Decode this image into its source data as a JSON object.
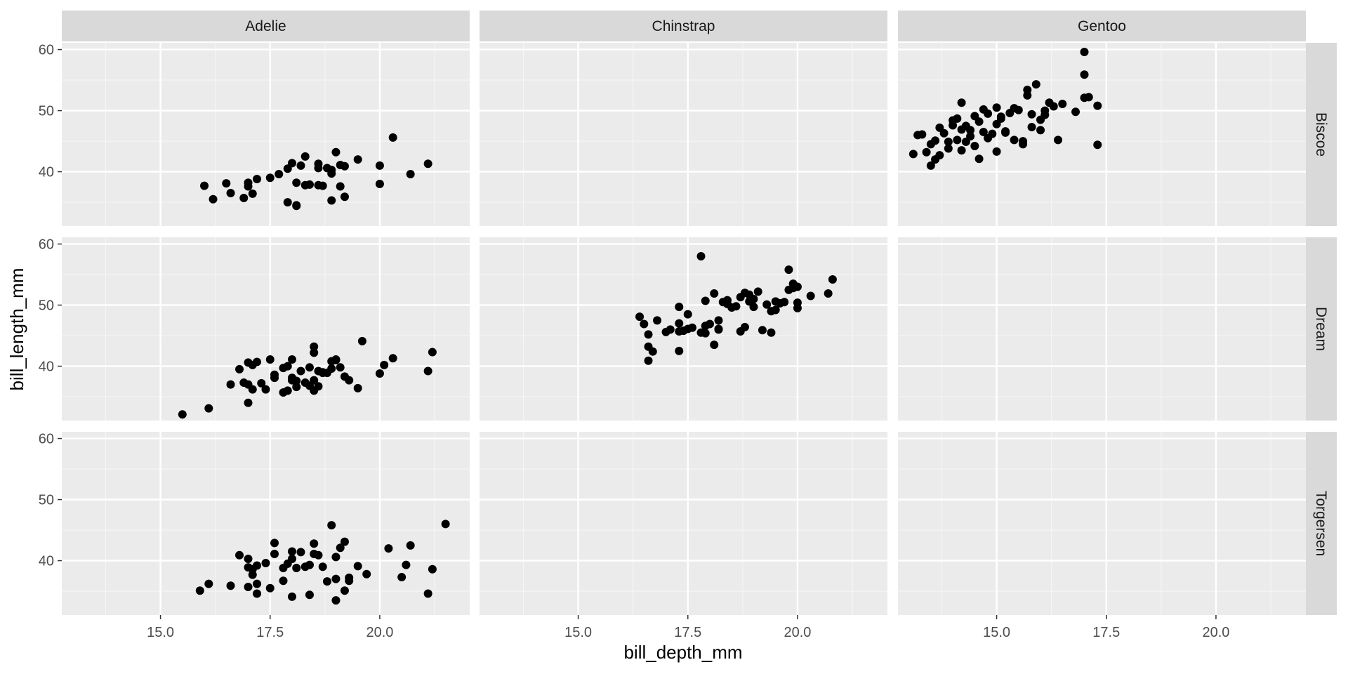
{
  "chart_data": {
    "type": "scatter",
    "title": "",
    "xlabel": "bill_depth_mm",
    "ylabel": "bill_length_mm",
    "xlim": [
      12.75,
      22.05
    ],
    "ylim": [
      31.1,
      61.1
    ],
    "x_ticks": [
      "15.0",
      "17.5",
      "20.0"
    ],
    "y_ticks": [
      "40",
      "50",
      "60"
    ],
    "facet_columns": [
      "Adelie",
      "Chinstrap",
      "Gentoo"
    ],
    "facet_rows": [
      "Biscoe",
      "Dream",
      "Torgersen"
    ],
    "grid": true,
    "legend": "none",
    "colors": {
      "panel_bg": "#ebebeb",
      "strip_bg": "#d9d9d9",
      "grid_major": "#ffffff",
      "grid_minor": "#f5f5f5",
      "point": "#000000",
      "tick_text": "#4d4d4d",
      "strip_text": "#1a1a1a"
    },
    "panels": [
      {
        "species": "Adelie",
        "island": "Biscoe",
        "x": [
          16.0,
          16.2,
          16.5,
          16.6,
          16.9,
          17.0,
          17.0,
          17.1,
          17.2,
          17.5,
          17.7,
          17.9,
          18.0,
          18.1,
          18.1,
          18.2,
          18.3,
          18.3,
          18.4,
          18.6,
          18.6,
          18.7,
          18.8,
          18.9,
          18.9,
          19.0,
          19.1,
          19.1,
          19.2,
          19.5,
          20.0,
          20.0,
          20.3,
          20.7,
          21.1,
          17.9,
          18.1,
          18.9,
          19.2,
          18.6
        ],
        "y": [
          37.7,
          35.5,
          38.1,
          36.5,
          35.7,
          37.6,
          38.2,
          36.4,
          38.8,
          39.0,
          39.6,
          40.5,
          41.4,
          38.2,
          34.5,
          41.0,
          37.8,
          42.5,
          37.9,
          37.8,
          41.3,
          37.7,
          40.6,
          40.3,
          35.3,
          43.2,
          37.6,
          41.1,
          35.9,
          42.0,
          41.0,
          38.0,
          45.6,
          39.6,
          41.3,
          35.0,
          34.4,
          39.7,
          40.9,
          40.6
        ]
      },
      {
        "species": "Chinstrap",
        "island": "Biscoe",
        "x": [],
        "y": []
      },
      {
        "species": "Gentoo",
        "island": "Biscoe",
        "x": [
          13.1,
          13.3,
          13.4,
          13.5,
          13.6,
          13.7,
          13.7,
          13.8,
          13.9,
          14.0,
          14.1,
          14.2,
          14.2,
          14.3,
          14.4,
          14.5,
          14.5,
          14.6,
          14.7,
          14.8,
          14.9,
          15.0,
          15.0,
          15.1,
          15.2,
          15.3,
          15.4,
          15.5,
          15.6,
          15.7,
          15.8,
          15.9,
          16.0,
          16.1,
          16.2,
          16.3,
          16.4,
          16.8,
          17.0,
          17.0,
          17.0,
          17.1,
          17.3,
          17.3,
          15.6,
          15.7,
          15.8,
          16.1,
          14.8,
          14.1,
          13.6,
          13.2,
          14.0,
          15.0,
          14.4,
          14.6,
          15.1,
          14.2,
          15.4,
          13.9,
          14.3,
          16.0,
          16.5,
          15.2,
          14.7,
          13.5
        ],
        "y": [
          42.9,
          46.1,
          43.2,
          44.5,
          45.1,
          47.2,
          42.7,
          46.3,
          44.9,
          48.4,
          45.2,
          51.3,
          43.5,
          47.5,
          46.8,
          49.1,
          44.2,
          48.2,
          46.5,
          49.5,
          46.2,
          50.5,
          47.8,
          48.7,
          46.4,
          49.6,
          45.2,
          50.1,
          44.5,
          52.5,
          47.3,
          54.3,
          46.8,
          49.3,
          51.3,
          50.7,
          45.2,
          49.8,
          59.6,
          55.9,
          52.1,
          52.2,
          50.8,
          44.4,
          45.0,
          53.4,
          49.4,
          50.0,
          45.5,
          48.7,
          42.0,
          46.0,
          47.6,
          43.3,
          45.8,
          42.1,
          49.0,
          46.9,
          50.4,
          43.8,
          44.9,
          48.5,
          51.1,
          46.6,
          50.2,
          41.0
        ]
      },
      {
        "species": "Adelie",
        "island": "Dream",
        "x": [
          15.5,
          16.1,
          16.6,
          16.8,
          16.9,
          17.0,
          17.0,
          17.1,
          17.1,
          17.2,
          17.3,
          17.5,
          17.6,
          17.8,
          17.9,
          18.0,
          18.1,
          18.1,
          18.3,
          18.4,
          18.5,
          18.5,
          18.5,
          18.6,
          18.7,
          18.8,
          18.9,
          19.0,
          19.1,
          19.2,
          19.3,
          19.5,
          19.6,
          20.0,
          20.1,
          20.3,
          21.1,
          21.2,
          17.4,
          17.8,
          18.0,
          18.2,
          18.6,
          18.9,
          17.0,
          17.6,
          18.4,
          18.0,
          17.9,
          18.5,
          18.7,
          19.0
        ],
        "y": [
          32.1,
          33.1,
          37.0,
          39.5,
          37.3,
          40.6,
          37.0,
          36.2,
          40.2,
          40.7,
          37.2,
          41.1,
          38.1,
          39.7,
          36.0,
          41.1,
          37.6,
          36.6,
          37.3,
          39.8,
          43.2,
          37.7,
          42.2,
          39.2,
          39.0,
          38.9,
          40.8,
          41.1,
          39.8,
          38.3,
          37.7,
          36.4,
          44.1,
          38.8,
          40.2,
          41.3,
          39.2,
          42.3,
          36.2,
          35.7,
          38.1,
          39.2,
          36.7,
          39.6,
          34.0,
          38.6,
          36.8,
          37.7,
          40.0,
          36.0,
          38.9,
          41.0
        ]
      },
      {
        "species": "Chinstrap",
        "island": "Dream",
        "x": [
          16.4,
          16.5,
          16.6,
          16.6,
          16.6,
          16.7,
          16.8,
          17.0,
          17.1,
          17.3,
          17.3,
          17.3,
          17.3,
          17.5,
          17.5,
          17.8,
          17.8,
          17.9,
          17.9,
          18.1,
          18.1,
          18.2,
          18.2,
          18.3,
          18.4,
          18.5,
          18.6,
          18.7,
          18.8,
          18.8,
          18.9,
          19.0,
          19.0,
          19.2,
          19.3,
          19.4,
          19.5,
          19.5,
          19.6,
          19.7,
          19.8,
          19.8,
          19.9,
          20.0,
          20.0,
          20.3,
          20.7,
          20.8,
          17.6,
          18.0,
          18.4,
          18.9,
          19.1,
          19.4,
          17.9,
          18.2,
          18.7,
          19.9,
          20.0,
          17.4
        ],
        "y": [
          48.1,
          46.9,
          45.2,
          43.2,
          40.9,
          42.4,
          47.5,
          45.6,
          46.0,
          49.7,
          47.0,
          45.7,
          42.5,
          46.1,
          48.5,
          58.0,
          45.5,
          50.7,
          46.6,
          51.9,
          43.5,
          47.5,
          46.0,
          50.5,
          50.8,
          49.6,
          49.8,
          51.3,
          52.0,
          46.4,
          50.6,
          51.0,
          49.7,
          45.9,
          50.1,
          45.5,
          50.6,
          49.2,
          50.3,
          50.5,
          55.8,
          52.5,
          53.5,
          49.5,
          50.4,
          51.5,
          51.9,
          54.2,
          46.3,
          46.9,
          50.2,
          51.7,
          52.2,
          49.0,
          45.4,
          46.1,
          45.7,
          52.8,
          53.0,
          45.8
        ]
      },
      {
        "species": "Gentoo",
        "island": "Dream",
        "x": [],
        "y": []
      },
      {
        "species": "Adelie",
        "island": "Torgersen",
        "x": [
          15.9,
          16.1,
          16.6,
          16.8,
          17.0,
          17.0,
          17.1,
          17.1,
          17.2,
          17.2,
          17.2,
          17.4,
          17.5,
          17.6,
          17.6,
          17.8,
          17.9,
          18.0,
          18.0,
          18.1,
          18.2,
          18.4,
          18.4,
          18.5,
          18.6,
          18.7,
          18.8,
          18.9,
          19.0,
          19.0,
          19.1,
          19.2,
          19.3,
          19.3,
          19.5,
          19.7,
          20.2,
          20.5,
          20.6,
          20.7,
          21.1,
          21.2,
          21.5,
          17.0,
          17.8,
          18.5,
          19.2,
          18.3,
          19.0,
          18.0
        ],
        "y": [
          35.1,
          36.2,
          35.9,
          40.9,
          35.7,
          40.3,
          37.7,
          38.6,
          34.6,
          39.2,
          36.2,
          39.6,
          35.5,
          42.9,
          41.1,
          38.8,
          39.5,
          40.3,
          34.1,
          38.8,
          41.4,
          34.4,
          39.3,
          42.8,
          40.9,
          39.0,
          36.6,
          45.8,
          33.5,
          40.6,
          42.1,
          43.1,
          36.7,
          37.2,
          39.1,
          37.8,
          42.0,
          37.3,
          39.3,
          42.5,
          34.6,
          38.6,
          46.0,
          38.9,
          36.7,
          41.1,
          35.1,
          39.0,
          37.0,
          41.5
        ]
      },
      {
        "species": "Chinstrap",
        "island": "Torgersen",
        "x": [],
        "y": []
      },
      {
        "species": "Gentoo",
        "island": "Torgersen",
        "x": [],
        "y": []
      }
    ]
  }
}
